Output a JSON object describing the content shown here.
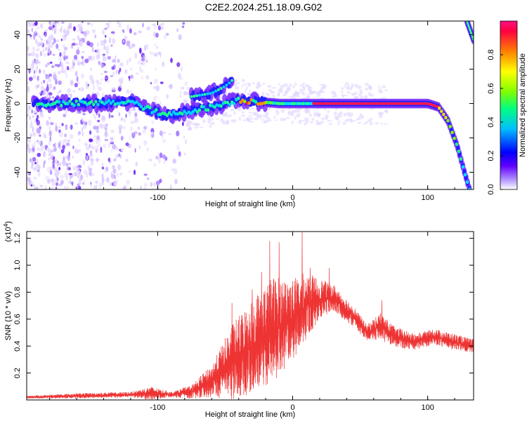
{
  "title": "C2E2.2024.251.18.09.G02",
  "chart_data": [
    {
      "type": "heatmap",
      "xlabel": "Height of straight line (km)",
      "ylabel": "Frequency (Hz)",
      "xlim": [
        -197,
        134
      ],
      "ylim": [
        -50,
        48
      ],
      "x_ticks": [
        -100,
        0,
        100
      ],
      "y_ticks": [
        -40,
        -20,
        0,
        20,
        40
      ],
      "colorbar": {
        "label": "Normalized spectral amplitude",
        "range": [
          0.0,
          1.0
        ],
        "ticks": [
          0.0,
          0.2,
          0.4,
          0.6,
          0.8
        ],
        "tick_labels": [
          "0.0",
          "0.2",
          "0.4",
          "0.6",
          "0.8"
        ],
        "colormap": [
          "#ffffff",
          "#b090ff",
          "#6000ff",
          "#0000ff",
          "#00c0ff",
          "#00ff80",
          "#80ff00",
          "#ffff00",
          "#ff8000",
          "#ff0040"
        ]
      },
      "ridge": [
        {
          "x": -190,
          "y": 0
        },
        {
          "x": -150,
          "y": 0
        },
        {
          "x": -120,
          "y": 1
        },
        {
          "x": -95,
          "y": -7
        },
        {
          "x": -80,
          "y": -5
        },
        {
          "x": -60,
          "y": -2
        },
        {
          "x": -40,
          "y": 2
        },
        {
          "x": -25,
          "y": 1
        },
        {
          "x": -10,
          "y": 0
        },
        {
          "x": 0,
          "y": 0
        },
        {
          "x": 50,
          "y": 0
        },
        {
          "x": 100,
          "y": 0
        },
        {
          "x": 108,
          "y": -2
        },
        {
          "x": 115,
          "y": -10
        },
        {
          "x": 122,
          "y": -25
        },
        {
          "x": 128,
          "y": -42
        },
        {
          "x": 131,
          "y": -50
        }
      ],
      "secondary_ridge": [
        {
          "x": -75,
          "y": 4
        },
        {
          "x": -60,
          "y": 6
        },
        {
          "x": -50,
          "y": 10
        },
        {
          "x": -44,
          "y": 14
        }
      ],
      "upper_ridge": [
        {
          "x": 129,
          "y": 48
        },
        {
          "x": 134,
          "y": 37
        }
      ]
    },
    {
      "type": "line",
      "xlabel": "Height of straight line (km)",
      "ylabel": "SNR (10 * v/v)",
      "y_scale_label": "(x10",
      "y_scale_exponent": "4",
      "y_scale_suffix": ")",
      "xlim": [
        -197,
        134
      ],
      "ylim": [
        0,
        1.25
      ],
      "x_ticks": [
        -100,
        0,
        100
      ],
      "y_ticks": [
        0.2,
        0.4,
        0.6,
        0.8,
        1.0,
        1.2
      ],
      "y_tick_labels": [
        "0.2",
        "0.4",
        "0.6",
        "0.8",
        "1.0",
        "1.2"
      ],
      "series": [
        {
          "color": "#ee3333",
          "envelope": [
            {
              "x": -197,
              "base": 0.02,
              "amp": 0.01
            },
            {
              "x": -160,
              "base": 0.03,
              "amp": 0.02
            },
            {
              "x": -120,
              "base": 0.04,
              "amp": 0.02
            },
            {
              "x": -105,
              "base": 0.05,
              "amp": 0.05
            },
            {
              "x": -90,
              "base": 0.04,
              "amp": 0.02
            },
            {
              "x": -75,
              "base": 0.06,
              "amp": 0.05
            },
            {
              "x": -60,
              "base": 0.14,
              "amp": 0.12
            },
            {
              "x": -45,
              "base": 0.28,
              "amp": 0.28
            },
            {
              "x": -30,
              "base": 0.4,
              "amp": 0.35
            },
            {
              "x": -15,
              "base": 0.52,
              "amp": 0.4
            },
            {
              "x": 0,
              "base": 0.6,
              "amp": 0.3
            },
            {
              "x": 10,
              "base": 0.7,
              "amp": 0.25
            },
            {
              "x": 20,
              "base": 0.75,
              "amp": 0.15
            },
            {
              "x": 30,
              "base": 0.76,
              "amp": 0.1
            },
            {
              "x": 45,
              "base": 0.62,
              "amp": 0.08
            },
            {
              "x": 55,
              "base": 0.5,
              "amp": 0.06
            },
            {
              "x": 65,
              "base": 0.55,
              "amp": 0.1
            },
            {
              "x": 75,
              "base": 0.47,
              "amp": 0.08
            },
            {
              "x": 90,
              "base": 0.43,
              "amp": 0.06
            },
            {
              "x": 105,
              "base": 0.47,
              "amp": 0.06
            },
            {
              "x": 120,
              "base": 0.43,
              "amp": 0.06
            },
            {
              "x": 134,
              "base": 0.4,
              "amp": 0.05
            }
          ],
          "peaks": [
            {
              "x": -45,
              "y": 0.72
            },
            {
              "x": -30,
              "y": 0.82
            },
            {
              "x": -23,
              "y": 0.95
            },
            {
              "x": -17,
              "y": 1.18
            },
            {
              "x": -10,
              "y": 1.17
            },
            {
              "x": 7,
              "y": 1.25
            },
            {
              "x": 13,
              "y": 0.98
            },
            {
              "x": 27,
              "y": 0.98
            },
            {
              "x": 66,
              "y": 0.74
            }
          ]
        }
      ]
    }
  ]
}
